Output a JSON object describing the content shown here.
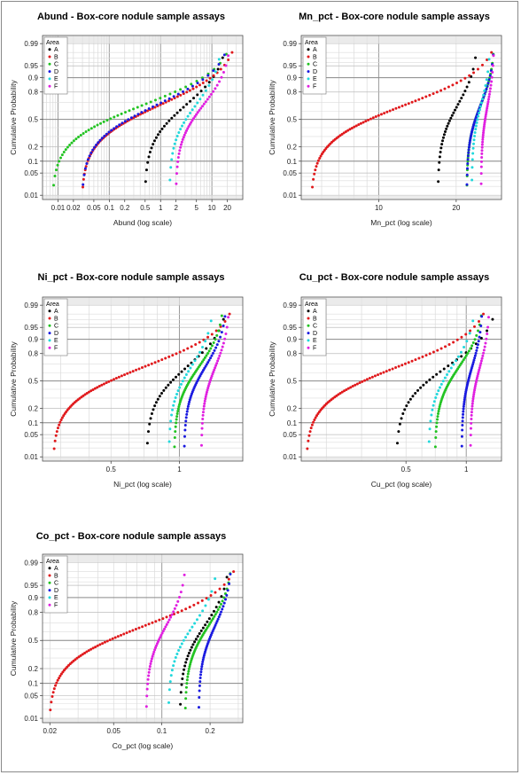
{
  "legend_title": "Area",
  "areas": [
    {
      "name": "A",
      "color": "#000000"
    },
    {
      "name": "B",
      "color": "#e0191c"
    },
    {
      "name": "C",
      "color": "#22c322"
    },
    {
      "name": "D",
      "color": "#1a1ae0"
    },
    {
      "name": "E",
      "color": "#22d8dc"
    },
    {
      "name": "F",
      "color": "#e020e0"
    }
  ],
  "chart_data": [
    {
      "type": "scatter",
      "title": "Abund - Box-core nodule sample assays",
      "xlabel": "Abund (log scale)",
      "ylabel": "Cumulative Probability",
      "x_scale": "log",
      "y_scale": "probability",
      "xlim": [
        0.005,
        40
      ],
      "ylim": [
        0.007,
        0.995
      ],
      "x_ticks": [
        0.01,
        0.02,
        0.05,
        0.1,
        0.2,
        0.5,
        1,
        2,
        5,
        10,
        20
      ],
      "x_tick_labels": [
        "0.01",
        "0.02",
        "0.05",
        "0.1",
        "0.2",
        "0.5",
        "1",
        "2",
        "5",
        "10",
        "20"
      ],
      "y_ticks": [
        0.01,
        0.05,
        0.1,
        0.2,
        0.5,
        0.8,
        0.9,
        0.95,
        0.99
      ],
      "y_tick_labels": [
        "0.01",
        "0.05",
        "0.1",
        "0.2",
        "0.5",
        "0.8",
        "0.9",
        "0.95",
        "0.99"
      ],
      "legend": "top-left",
      "series": [
        {
          "name": "A",
          "n": 30,
          "min": 0.5,
          "max": 18
        },
        {
          "name": "B",
          "n": 70,
          "min": 0.03,
          "max": 27
        },
        {
          "name": "C",
          "n": 50,
          "min": 0.008,
          "max": 22
        },
        {
          "name": "D",
          "n": 45,
          "min": 0.03,
          "max": 20
        },
        {
          "name": "E",
          "n": 25,
          "min": 1.5,
          "max": 15
        },
        {
          "name": "F",
          "n": 40,
          "min": 2,
          "max": 22
        }
      ]
    },
    {
      "type": "scatter",
      "title": "Mn_pct - Box-core nodule sample assays",
      "xlabel": "Mn_pct (log scale)",
      "ylabel": "Cumulative Probability",
      "x_scale": "log",
      "y_scale": "probability",
      "xlim": [
        5,
        30
      ],
      "ylim": [
        0.007,
        0.995
      ],
      "x_ticks": [
        10,
        20
      ],
      "x_tick_labels": [
        "10",
        "20"
      ],
      "y_ticks": [
        0.01,
        0.05,
        0.1,
        0.2,
        0.5,
        0.8,
        0.9,
        0.95,
        0.99
      ],
      "y_tick_labels": [
        "0.01",
        "0.05",
        "0.1",
        "0.2",
        "0.5",
        "0.8",
        "0.9",
        "0.95",
        "0.99"
      ],
      "legend": "top-left",
      "series": [
        {
          "name": "A",
          "n": 30,
          "min": 17,
          "max": 24
        },
        {
          "name": "B",
          "n": 70,
          "min": 5.5,
          "max": 28
        },
        {
          "name": "C",
          "n": 50,
          "min": 22,
          "max": 28
        },
        {
          "name": "D",
          "n": 45,
          "min": 22,
          "max": 28
        },
        {
          "name": "E",
          "n": 25,
          "min": 23,
          "max": 27
        },
        {
          "name": "F",
          "n": 40,
          "min": 25,
          "max": 28
        }
      ]
    },
    {
      "type": "scatter",
      "title": "Ni_pct - Box-core nodule sample assays",
      "xlabel": "Ni_pct (log scale)",
      "ylabel": "Cumulative Probability",
      "x_scale": "log",
      "y_scale": "probability",
      "xlim": [
        0.25,
        1.9
      ],
      "ylim": [
        0.007,
        0.995
      ],
      "x_ticks": [
        0.5,
        1
      ],
      "x_tick_labels": [
        "0.5",
        "1"
      ],
      "y_ticks": [
        0.01,
        0.05,
        0.1,
        0.2,
        0.5,
        0.8,
        0.9,
        0.95,
        0.99
      ],
      "y_tick_labels": [
        "0.01",
        "0.05",
        "0.1",
        "0.2",
        "0.5",
        "0.8",
        "0.9",
        "0.95",
        "0.99"
      ],
      "legend": "top-left",
      "series": [
        {
          "name": "A",
          "n": 30,
          "min": 0.72,
          "max": 1.6
        },
        {
          "name": "B",
          "n": 70,
          "min": 0.28,
          "max": 1.7
        },
        {
          "name": "C",
          "n": 50,
          "min": 0.95,
          "max": 1.55
        },
        {
          "name": "D",
          "n": 45,
          "min": 1.05,
          "max": 1.6
        },
        {
          "name": "E",
          "n": 25,
          "min": 0.9,
          "max": 1.4
        },
        {
          "name": "F",
          "n": 40,
          "min": 1.25,
          "max": 1.65
        }
      ]
    },
    {
      "type": "scatter",
      "title": "Cu_pct - Box-core nodule sample assays",
      "xlabel": "Cu_pct (log scale)",
      "ylabel": "Cumulative Probability",
      "x_scale": "log",
      "y_scale": "probability",
      "xlim": [
        0.15,
        1.5
      ],
      "ylim": [
        0.007,
        0.995
      ],
      "x_ticks": [
        0.5,
        1
      ],
      "x_tick_labels": [
        "0.5",
        "1"
      ],
      "y_ticks": [
        0.01,
        0.05,
        0.1,
        0.2,
        0.5,
        0.8,
        0.9,
        0.95,
        0.99
      ],
      "y_tick_labels": [
        "0.01",
        "0.05",
        "0.1",
        "0.2",
        "0.5",
        "0.8",
        "0.9",
        "0.95",
        "0.99"
      ],
      "legend": "top-left",
      "series": [
        {
          "name": "A",
          "n": 30,
          "min": 0.45,
          "max": 1.4
        },
        {
          "name": "B",
          "n": 70,
          "min": 0.16,
          "max": 1.25
        },
        {
          "name": "C",
          "n": 50,
          "min": 0.7,
          "max": 1.2
        },
        {
          "name": "D",
          "n": 45,
          "min": 0.95,
          "max": 1.2
        },
        {
          "name": "E",
          "n": 25,
          "min": 0.65,
          "max": 1.1
        },
        {
          "name": "F",
          "n": 40,
          "min": 1.05,
          "max": 1.3
        }
      ]
    },
    {
      "type": "scatter",
      "title": "Co_pct - Box-core nodule sample assays",
      "xlabel": "Co_pct (log scale)",
      "ylabel": "Cumulative Probability",
      "x_scale": "log",
      "y_scale": "probability",
      "xlim": [
        0.018,
        0.32
      ],
      "ylim": [
        0.007,
        0.995
      ],
      "x_ticks": [
        0.02,
        0.05,
        0.1,
        0.2
      ],
      "x_tick_labels": [
        "0.02",
        "0.05",
        "0.1",
        "0.2"
      ],
      "y_ticks": [
        0.01,
        0.05,
        0.1,
        0.2,
        0.5,
        0.8,
        0.9,
        0.95,
        0.99
      ],
      "y_tick_labels": [
        "0.01",
        "0.05",
        "0.1",
        "0.2",
        "0.5",
        "0.8",
        "0.9",
        "0.95",
        "0.99"
      ],
      "legend": "top-left",
      "series": [
        {
          "name": "A",
          "n": 30,
          "min": 0.13,
          "max": 0.26
        },
        {
          "name": "B",
          "n": 70,
          "min": 0.02,
          "max": 0.29
        },
        {
          "name": "C",
          "n": 50,
          "min": 0.14,
          "max": 0.27
        },
        {
          "name": "D",
          "n": 45,
          "min": 0.17,
          "max": 0.27
        },
        {
          "name": "E",
          "n": 25,
          "min": 0.11,
          "max": 0.22
        },
        {
          "name": "F",
          "n": 40,
          "min": 0.08,
          "max": 0.14
        }
      ]
    }
  ]
}
